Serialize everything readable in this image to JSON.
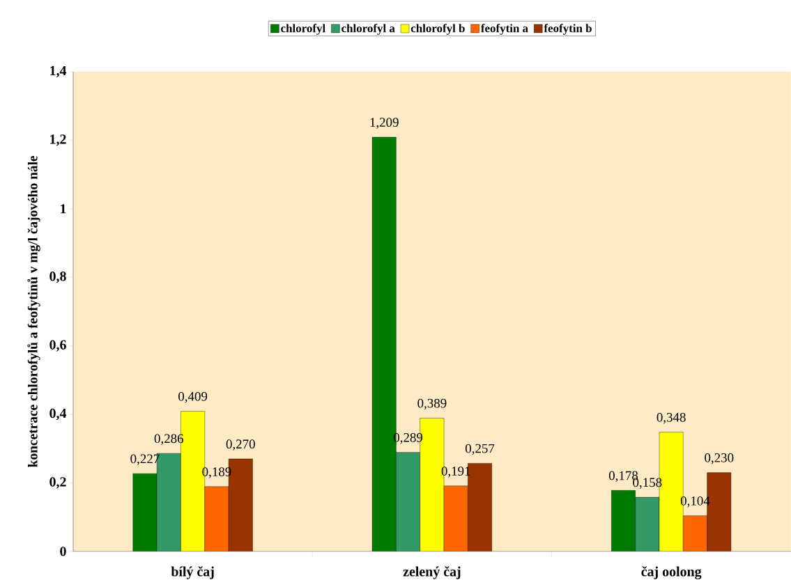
{
  "chart_data": {
    "type": "bar",
    "ylabel": "koncetrace chlorofylů a feofytinů v mg/l čajového nále",
    "categories": [
      "bílý čaj",
      "zelený čaj",
      "čaj oolong"
    ],
    "series": [
      {
        "name": "chlorofyl",
        "color": "#007a00",
        "values": [
          0.227,
          1.209,
          0.178
        ],
        "value_labels": [
          "0,227",
          "1,209",
          "0,178"
        ]
      },
      {
        "name": "chlorofyl a",
        "color": "#339966",
        "values": [
          0.286,
          0.289,
          0.158
        ],
        "value_labels": [
          "0,286",
          "0,289",
          "0,158"
        ]
      },
      {
        "name": "chlorofyl b",
        "color": "#ffff00",
        "values": [
          0.409,
          0.389,
          0.348
        ],
        "value_labels": [
          "0,409",
          "0,389",
          "0,348"
        ]
      },
      {
        "name": "feofytin a",
        "color": "#ff6600",
        "values": [
          0.189,
          0.191,
          0.104
        ],
        "value_labels": [
          "0,189",
          "0,191",
          "0,104"
        ]
      },
      {
        "name": "feofytin b",
        "color": "#993300",
        "values": [
          0.27,
          0.257,
          0.23
        ],
        "value_labels": [
          "0,270",
          "0,257",
          "0,230"
        ]
      }
    ],
    "ylim": [
      0,
      1.4
    ],
    "yticks": [
      0,
      {
        "value": 0.2,
        "label": "0,2"
      },
      {
        "value": 0.4,
        "label": "0,4"
      },
      {
        "value": 0.6,
        "label": "0,6"
      },
      {
        "value": 0.8,
        "label": "0,8"
      },
      1,
      {
        "value": 1.2,
        "label": "1,2"
      },
      {
        "value": 1.4,
        "label": "1,4"
      }
    ],
    "legend": "top",
    "grid": false
  }
}
